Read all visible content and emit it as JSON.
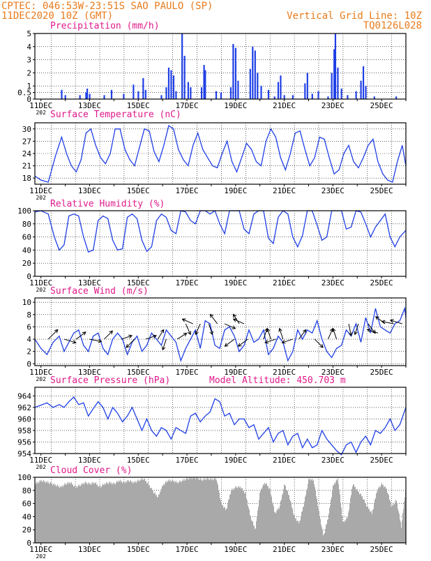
{
  "header": {
    "line1": "CPTEC:  046:53W-23:51S  SAO PAULO (SP)",
    "line2": "11DEC2020 10Z (GMT)",
    "right1": "Vertical Grid Line: 10Z",
    "right2": "TQ0126L028",
    "altitude": "Model Altitude: 450.703 m",
    "year_stub": "202"
  },
  "colors": {
    "header": "#e87b1c",
    "panel_title": "#e0198a",
    "series": "#1f3fe6",
    "cloud": "#a9a9a9",
    "arrow": "#000000"
  },
  "chart_data": [
    {
      "id": "precip",
      "type": "bar",
      "title": "Precipitation (mm/h)",
      "x_ticks": [
        "11DEC",
        "13DEC",
        "15DEC",
        "17DEC",
        "19DEC",
        "21DEC",
        "23DEC",
        "25DEC"
      ],
      "x_start": "2020-12-11T10Z",
      "x_end": "2020-12-26T00Z",
      "ylim": [
        0,
        5
      ],
      "y_ticks": [
        0,
        0.5,
        1,
        2,
        3,
        4,
        5
      ],
      "bars": [
        [
          11.85,
          0.7
        ],
        [
          12.0,
          0.3
        ],
        [
          12.6,
          0.3
        ],
        [
          12.85,
          0.5
        ],
        [
          12.9,
          0.8
        ],
        [
          13.0,
          0.4
        ],
        [
          13.6,
          0.3
        ],
        [
          13.9,
          0.7
        ],
        [
          14.4,
          0.4
        ],
        [
          14.8,
          1.1
        ],
        [
          15.0,
          0.6
        ],
        [
          15.2,
          1.6
        ],
        [
          15.3,
          0.7
        ],
        [
          15.95,
          0.3
        ],
        [
          16.15,
          0.9
        ],
        [
          16.25,
          2.4
        ],
        [
          16.35,
          2.2
        ],
        [
          16.45,
          1.8
        ],
        [
          16.55,
          0.6
        ],
        [
          16.8,
          5.0
        ],
        [
          16.9,
          3.3
        ],
        [
          17.05,
          1.3
        ],
        [
          17.15,
          0.9
        ],
        [
          17.6,
          0.9
        ],
        [
          17.7,
          2.6
        ],
        [
          17.75,
          2.2
        ],
        [
          18.2,
          0.6
        ],
        [
          18.4,
          0.5
        ],
        [
          18.8,
          0.9
        ],
        [
          18.9,
          4.2
        ],
        [
          19.0,
          3.9
        ],
        [
          19.1,
          1.4
        ],
        [
          19.6,
          2.3
        ],
        [
          19.7,
          4.0
        ],
        [
          19.8,
          3.7
        ],
        [
          19.9,
          2.0
        ],
        [
          20.05,
          1.0
        ],
        [
          20.35,
          0.7
        ],
        [
          20.6,
          0.2
        ],
        [
          20.75,
          1.3
        ],
        [
          20.85,
          1.8
        ],
        [
          21.0,
          0.3
        ],
        [
          21.35,
          0.3
        ],
        [
          21.85,
          1.2
        ],
        [
          21.95,
          2.0
        ],
        [
          22.15,
          0.4
        ],
        [
          22.4,
          0.6
        ],
        [
          22.8,
          0.2
        ],
        [
          22.95,
          2.0
        ],
        [
          23.05,
          3.8
        ],
        [
          23.1,
          5.0
        ],
        [
          23.2,
          2.4
        ],
        [
          23.35,
          0.8
        ],
        [
          23.6,
          0.3
        ],
        [
          23.95,
          0.6
        ],
        [
          24.15,
          1.4
        ],
        [
          24.25,
          2.5
        ],
        [
          24.35,
          1.0
        ],
        [
          24.7,
          0.2
        ],
        [
          25.6,
          0.2
        ]
      ]
    },
    {
      "id": "temp",
      "type": "line",
      "title": "Surface Temperature (nC)",
      "x_ticks": [
        "11DEC",
        "13DEC",
        "15DEC",
        "17DEC",
        "19DEC",
        "21DEC",
        "23DEC",
        "25DEC"
      ],
      "ylim": [
        16.5,
        31.5
      ],
      "y_ticks": [
        18,
        21,
        24,
        27,
        30
      ],
      "x": [
        10.75,
        11.0,
        11.3,
        11.6,
        11.85,
        12.05,
        12.25,
        12.45,
        12.65,
        12.85,
        13.05,
        13.25,
        13.45,
        13.65,
        13.85,
        14.05,
        14.25,
        14.45,
        14.65,
        14.85,
        15.05,
        15.25,
        15.45,
        15.65,
        15.85,
        16.05,
        16.25,
        16.45,
        16.65,
        16.85,
        17.05,
        17.25,
        17.45,
        17.65,
        17.85,
        18.05,
        18.25,
        18.45,
        18.65,
        18.85,
        19.05,
        19.25,
        19.45,
        19.65,
        19.85,
        20.05,
        20.25,
        20.45,
        20.65,
        20.85,
        21.05,
        21.25,
        21.45,
        21.65,
        21.85,
        22.05,
        22.25,
        22.45,
        22.65,
        22.85,
        23.05,
        23.25,
        23.45,
        23.65,
        23.85,
        24.05,
        24.25,
        24.45,
        24.65,
        24.85,
        25.05,
        25.25,
        25.45,
        25.65,
        25.85,
        26.0
      ],
      "y": [
        18.5,
        17.5,
        17.0,
        23.5,
        28.0,
        24.0,
        21.0,
        19.5,
        22.5,
        29.0,
        30.0,
        26.0,
        23.0,
        21.5,
        24.0,
        30.0,
        30.0,
        25.0,
        22.5,
        21.0,
        25.5,
        30.0,
        29.5,
        24.5,
        22.0,
        26.0,
        30.8,
        30.0,
        25.0,
        22.5,
        21.0,
        26.0,
        29.0,
        25.0,
        23.0,
        21.0,
        20.5,
        24.0,
        27.0,
        22.0,
        19.5,
        23.0,
        26.5,
        25.0,
        22.0,
        21.0,
        27.0,
        30.0,
        28.0,
        23.0,
        20.0,
        24.0,
        29.0,
        29.5,
        25.0,
        21.0,
        23.0,
        28.0,
        27.5,
        23.0,
        19.0,
        20.0,
        24.0,
        26.0,
        22.0,
        20.5,
        23.0,
        26.0,
        27.5,
        22.0,
        19.0,
        17.5,
        17.0,
        22.0,
        26.0,
        21.0
      ]
    },
    {
      "id": "rh",
      "type": "line",
      "title": "Relative Humidity (%)",
      "x_ticks": [
        "11DEC",
        "13DEC",
        "15DEC",
        "17DEC",
        "19DEC",
        "21DEC",
        "23DEC",
        "25DEC"
      ],
      "ylim": [
        0,
        100
      ],
      "y_ticks": [
        0,
        20,
        40,
        60,
        80,
        100
      ],
      "x": [
        10.75,
        11.0,
        11.3,
        11.55,
        11.75,
        11.95,
        12.15,
        12.35,
        12.55,
        12.75,
        12.95,
        13.15,
        13.35,
        13.55,
        13.75,
        13.95,
        14.15,
        14.35,
        14.55,
        14.75,
        14.95,
        15.15,
        15.35,
        15.55,
        15.75,
        15.95,
        16.15,
        16.35,
        16.55,
        16.75,
        16.95,
        17.15,
        17.35,
        17.55,
        17.75,
        17.95,
        18.15,
        18.35,
        18.55,
        18.75,
        18.95,
        19.15,
        19.35,
        19.55,
        19.75,
        19.95,
        20.15,
        20.35,
        20.55,
        20.75,
        20.95,
        21.15,
        21.35,
        21.55,
        21.75,
        21.95,
        22.15,
        22.35,
        22.55,
        22.75,
        22.95,
        23.15,
        23.35,
        23.55,
        23.75,
        23.95,
        24.15,
        24.35,
        24.55,
        24.75,
        24.95,
        25.15,
        25.35,
        25.55,
        25.75,
        26.0
      ],
      "y": [
        98,
        100,
        95,
        60,
        40,
        48,
        92,
        95,
        92,
        60,
        37,
        40,
        85,
        92,
        88,
        55,
        40,
        42,
        90,
        95,
        88,
        55,
        38,
        45,
        85,
        95,
        90,
        70,
        65,
        100,
        98,
        85,
        80,
        100,
        100,
        95,
        100,
        80,
        65,
        100,
        100,
        100,
        72,
        65,
        95,
        100,
        100,
        58,
        50,
        90,
        100,
        95,
        60,
        45,
        62,
        100,
        100,
        78,
        55,
        60,
        100,
        100,
        100,
        72,
        75,
        100,
        98,
        80,
        60,
        75,
        85,
        95,
        60,
        45,
        60,
        70
      ]
    },
    {
      "id": "wind",
      "type": "line",
      "title": "Surface Wind (m/s)",
      "x_ticks": [
        "11DEC",
        "13DEC",
        "15DEC",
        "17DEC",
        "19DEC",
        "21DEC",
        "23DEC",
        "25DEC"
      ],
      "ylim": [
        -0.3,
        10.7
      ],
      "y_ticks": [
        0,
        2,
        4,
        6,
        8,
        10
      ],
      "x": [
        10.75,
        11.0,
        11.25,
        11.5,
        11.75,
        11.95,
        12.15,
        12.35,
        12.55,
        12.75,
        12.95,
        13.15,
        13.35,
        13.55,
        13.75,
        13.95,
        14.15,
        14.35,
        14.55,
        14.75,
        14.95,
        15.15,
        15.35,
        15.55,
        15.75,
        15.95,
        16.15,
        16.35,
        16.55,
        16.75,
        16.95,
        17.15,
        17.35,
        17.55,
        17.75,
        17.95,
        18.15,
        18.35,
        18.55,
        18.75,
        18.95,
        19.15,
        19.35,
        19.55,
        19.75,
        19.95,
        20.15,
        20.35,
        20.55,
        20.75,
        20.95,
        21.15,
        21.35,
        21.55,
        21.75,
        21.95,
        22.15,
        22.35,
        22.55,
        22.75,
        22.95,
        23.15,
        23.35,
        23.55,
        23.75,
        23.95,
        24.15,
        24.35,
        24.55,
        24.75,
        24.95,
        25.15,
        25.35,
        25.55,
        25.75,
        25.95,
        26.0
      ],
      "y": [
        4.0,
        2.5,
        1.5,
        3.5,
        4.5,
        2.0,
        3.5,
        5.0,
        5.5,
        3.0,
        2.0,
        4.5,
        5.0,
        2.5,
        1.5,
        4.0,
        5.0,
        4.0,
        1.5,
        3.5,
        4.5,
        2.0,
        3.0,
        5.0,
        4.0,
        3.0,
        5.5,
        4.5,
        3.5,
        0.5,
        2.5,
        4.0,
        5.5,
        2.5,
        7.0,
        6.5,
        3.0,
        2.5,
        5.5,
        6.0,
        4.5,
        2.0,
        3.0,
        5.5,
        3.5,
        4.0,
        5.5,
        1.5,
        2.5,
        4.5,
        3.5,
        0.5,
        2.0,
        5.5,
        4.0,
        5.5,
        5.0,
        7.0,
        4.0,
        2.0,
        1.0,
        2.5,
        3.0,
        5.5,
        4.5,
        6.5,
        3.5,
        7.5,
        5.0,
        9.0,
        6.0,
        5.5,
        5.0,
        6.5,
        7.0,
        9.0,
        7.5
      ],
      "arrows": [
        [
          11.3,
          4,
          0.8,
          0.8
        ],
        [
          11.95,
          4,
          1.0,
          -0.3
        ],
        [
          12.45,
          4,
          0.8,
          0.6
        ],
        [
          13.0,
          4,
          1.0,
          -0.2
        ],
        [
          13.6,
          4,
          0.7,
          0.7
        ],
        [
          14.3,
          4,
          0.9,
          0.3
        ],
        [
          14.85,
          4,
          -0.7,
          -0.7
        ],
        [
          15.3,
          4,
          0.9,
          0.3
        ],
        [
          15.8,
          4,
          0.5,
          0.8
        ],
        [
          16.15,
          4,
          -0.3,
          -0.9
        ],
        [
          16.6,
          4,
          0.8,
          0.5
        ],
        [
          16.95,
          6.5,
          0.4,
          -0.9
        ],
        [
          17.25,
          6.5,
          -0.9,
          0.4
        ],
        [
          17.55,
          6.5,
          -0.4,
          -0.9
        ],
        [
          17.9,
          6.5,
          0.3,
          -0.9
        ],
        [
          18.25,
          6.5,
          -0.6,
          0.8
        ],
        [
          18.55,
          6.5,
          0.9,
          -0.4
        ],
        [
          18.95,
          4,
          -0.8,
          -0.6
        ],
        [
          19.15,
          6.5,
          -0.5,
          0.8
        ],
        [
          19.35,
          6.5,
          -0.9,
          0.4
        ],
        [
          19.5,
          4,
          -0.8,
          -0.6
        ],
        [
          20.15,
          4,
          0.3,
          0.9
        ],
        [
          20.45,
          4,
          -0.3,
          0.9
        ],
        [
          20.65,
          4,
          -0.9,
          -0.3
        ],
        [
          20.95,
          4,
          -0.3,
          0.9
        ],
        [
          21.35,
          4,
          -0.9,
          -0.3
        ],
        [
          21.6,
          4,
          0.6,
          0.8
        ],
        [
          22.25,
          4,
          0.7,
          -0.7
        ],
        [
          22.8,
          4,
          0.4,
          0.9
        ],
        [
          23.15,
          4,
          -0.3,
          0.9
        ],
        [
          23.65,
          6.5,
          0.2,
          -1.0
        ],
        [
          24.05,
          6.5,
          -0.3,
          -0.9
        ],
        [
          24.45,
          6.5,
          0.6,
          -0.8
        ],
        [
          24.85,
          5,
          -0.9,
          0.3
        ],
        [
          25.15,
          6.5,
          -0.8,
          0.6
        ],
        [
          25.5,
          6.5,
          -1.0,
          0.2
        ],
        [
          25.85,
          6.5,
          -1.0,
          0.3
        ]
      ]
    },
    {
      "id": "psfc",
      "type": "line",
      "title": "Surface Pressure (hPa)",
      "x_ticks": [
        "11DEC",
        "13DEC",
        "15DEC",
        "17DEC",
        "19DEC",
        "21DEC",
        "23DEC",
        "25DEC"
      ],
      "ylim": [
        954,
        965.5
      ],
      "y_ticks": [
        954,
        956,
        958,
        960,
        962,
        964
      ],
      "x": [
        10.75,
        11.0,
        11.25,
        11.5,
        11.75,
        11.95,
        12.15,
        12.35,
        12.55,
        12.75,
        12.95,
        13.15,
        13.35,
        13.55,
        13.75,
        13.95,
        14.15,
        14.35,
        14.55,
        14.75,
        14.95,
        15.15,
        15.35,
        15.55,
        15.75,
        15.95,
        16.15,
        16.35,
        16.55,
        16.75,
        16.95,
        17.15,
        17.35,
        17.55,
        17.75,
        17.95,
        18.15,
        18.35,
        18.55,
        18.75,
        18.95,
        19.15,
        19.35,
        19.55,
        19.75,
        19.95,
        20.15,
        20.35,
        20.55,
        20.75,
        20.95,
        21.15,
        21.35,
        21.55,
        21.75,
        21.95,
        22.15,
        22.35,
        22.55,
        22.75,
        22.95,
        23.15,
        23.35,
        23.55,
        23.75,
        23.95,
        24.15,
        24.35,
        24.55,
        24.75,
        24.95,
        25.15,
        25.35,
        25.55,
        25.75,
        26.0
      ],
      "y": [
        962.0,
        962.4,
        962.8,
        962.0,
        962.5,
        962.0,
        963.0,
        963.8,
        962.5,
        962.8,
        960.5,
        961.8,
        963.0,
        962.0,
        960.0,
        962.0,
        961.0,
        959.5,
        960.5,
        962.0,
        960.0,
        958.0,
        960.0,
        958.0,
        957.0,
        958.5,
        958.0,
        956.5,
        958.5,
        958.0,
        957.5,
        960.5,
        961.0,
        959.5,
        960.5,
        961.2,
        963.5,
        963.0,
        960.5,
        961.0,
        959.0,
        960.0,
        960.0,
        958.5,
        959.0,
        956.5,
        957.5,
        958.5,
        956.0,
        957.5,
        958.0,
        955.5,
        957.0,
        957.5,
        955.0,
        956.5,
        955.0,
        955.5,
        958.0,
        956.5,
        955.5,
        954.5,
        953.8,
        955.5,
        956.0,
        954.2,
        956.0,
        957.0,
        955.5,
        958.0,
        957.5,
        958.5,
        960.0,
        958.0,
        959.0,
        962.0
      ]
    },
    {
      "id": "cloud",
      "type": "area",
      "title": "Cloud Cover (%)",
      "x_ticks": [
        "11DEC",
        "13DEC",
        "15DEC",
        "17DEC",
        "19DEC",
        "21DEC",
        "23DEC",
        "25DEC"
      ],
      "ylim": [
        0,
        100
      ],
      "y_ticks": [
        0,
        20,
        40,
        60,
        80,
        100
      ],
      "x": [
        10.75,
        11.0,
        11.3,
        11.6,
        11.8,
        12.0,
        12.2,
        12.4,
        12.6,
        12.8,
        13.0,
        13.2,
        13.4,
        13.6,
        13.8,
        14.0,
        14.2,
        14.4,
        14.6,
        14.8,
        15.0,
        15.2,
        15.4,
        15.6,
        15.8,
        16.0,
        16.2,
        16.4,
        16.6,
        16.8,
        17.0,
        17.2,
        17.4,
        17.6,
        17.8,
        18.0,
        18.2,
        18.4,
        18.6,
        18.8,
        19.0,
        19.2,
        19.4,
        19.6,
        19.8,
        20.0,
        20.2,
        20.4,
        20.6,
        20.8,
        21.0,
        21.2,
        21.4,
        21.6,
        21.8,
        22.0,
        22.2,
        22.4,
        22.6,
        22.8,
        23.0,
        23.2,
        23.4,
        23.6,
        23.8,
        24.0,
        24.2,
        24.4,
        24.6,
        24.8,
        25.0,
        25.2,
        25.4,
        25.6,
        25.8,
        26.0
      ],
      "y": [
        90,
        95,
        92,
        88,
        85,
        90,
        92,
        85,
        88,
        92,
        90,
        92,
        85,
        90,
        92,
        90,
        95,
        92,
        95,
        92,
        95,
        98,
        90,
        78,
        70,
        88,
        95,
        95,
        92,
        95,
        98,
        99,
        99,
        96,
        98,
        97,
        98,
        60,
        50,
        80,
        85,
        85,
        75,
        40,
        20,
        80,
        92,
        82,
        45,
        55,
        90,
        70,
        40,
        30,
        60,
        98,
        95,
        50,
        10,
        40,
        88,
        98,
        30,
        40,
        90,
        80,
        70,
        55,
        45,
        80,
        90,
        82,
        55,
        65,
        25,
        90
      ]
    }
  ]
}
